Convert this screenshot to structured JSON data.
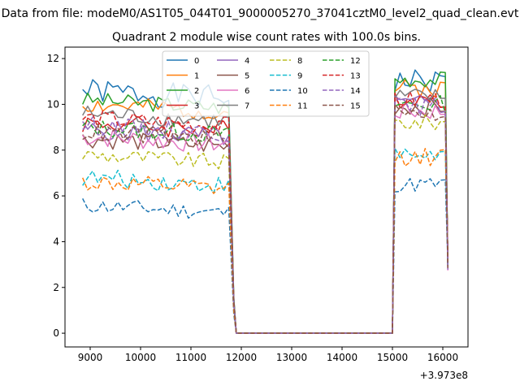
{
  "chart_data": {
    "type": "line",
    "suptitle": "Data from file: modeM0/AS1T05_044T01_9000005270_37041cztM0_level2_quad_clean.evt",
    "title": "Quadrant 2 module wise count rates with 100.0s bins.",
    "xlabel": "",
    "ylabel": "",
    "x_offset_label": "+3.973e8",
    "x_ticks": [
      9000,
      10000,
      11000,
      12000,
      13000,
      14000,
      15000,
      16000
    ],
    "x_tick_labels": [
      "9000",
      "10000",
      "11000",
      "12000",
      "13000",
      "14000",
      "15000",
      "16000"
    ],
    "y_ticks": [
      0,
      2,
      4,
      6,
      8,
      10,
      12
    ],
    "y_tick_labels": [
      "0",
      "2",
      "4",
      "6",
      "8",
      "10",
      "12"
    ],
    "xlim": [
      8500,
      16500
    ],
    "ylim": [
      -0.6,
      12.5
    ],
    "grid": false,
    "legend_position": "upper-center",
    "legend_columns": 4,
    "segments": [
      {
        "x_start": 8850,
        "x_end": 11800
      },
      {
        "x_start": 15050,
        "x_end": 16050
      }
    ],
    "gap_x": [
      11900,
      12000,
      13000,
      14000,
      15000
    ],
    "transition_points": [
      {
        "x": 11850,
        "frac": 0.15
      }
    ],
    "series": [
      {
        "name": "0",
        "color": "#1f77b4",
        "dash": "solid",
        "level1": 10.6,
        "level2": 11.0,
        "noise": 0.55,
        "seed": 1
      },
      {
        "name": "1",
        "color": "#ff7f0e",
        "dash": "solid",
        "level1": 10.0,
        "level2": 10.7,
        "noise": 0.4,
        "seed": 2
      },
      {
        "name": "2",
        "color": "#2ca02c",
        "dash": "solid",
        "level1": 10.2,
        "level2": 11.1,
        "noise": 0.35,
        "seed": 3
      },
      {
        "name": "3",
        "color": "#d62728",
        "dash": "solid",
        "level1": 9.2,
        "level2": 10.3,
        "noise": 0.45,
        "seed": 4
      },
      {
        "name": "4",
        "color": "#9467bd",
        "dash": "solid",
        "level1": 8.9,
        "level2": 10.0,
        "noise": 0.45,
        "seed": 5
      },
      {
        "name": "5",
        "color": "#8c564b",
        "dash": "solid",
        "level1": 8.5,
        "level2": 9.9,
        "noise": 0.4,
        "seed": 6
      },
      {
        "name": "6",
        "color": "#e377c2",
        "dash": "solid",
        "level1": 8.6,
        "level2": 9.7,
        "noise": 0.45,
        "seed": 7
      },
      {
        "name": "7",
        "color": "#7f7f7f",
        "dash": "solid",
        "level1": 9.6,
        "level2": 10.3,
        "noise": 0.4,
        "seed": 8
      },
      {
        "name": "8",
        "color": "#bcbd22",
        "dash": "dashed",
        "level1": 7.8,
        "level2": 9.2,
        "noise": 0.35,
        "seed": 9
      },
      {
        "name": "9",
        "color": "#17becf",
        "dash": "dashed",
        "level1": 6.8,
        "level2": 7.8,
        "noise": 0.4,
        "seed": 10
      },
      {
        "name": "10",
        "color": "#1f77b4",
        "dash": "dashed",
        "level1": 5.6,
        "level2": 6.5,
        "noise": 0.35,
        "seed": 11
      },
      {
        "name": "11",
        "color": "#ff7f0e",
        "dash": "dashed",
        "level1": 6.6,
        "level2": 7.7,
        "noise": 0.4,
        "seed": 12
      },
      {
        "name": "12",
        "color": "#2ca02c",
        "dash": "dashed",
        "level1": 9.0,
        "level2": 10.0,
        "noise": 0.4,
        "seed": 13
      },
      {
        "name": "13",
        "color": "#d62728",
        "dash": "dashed",
        "level1": 9.4,
        "level2": 10.2,
        "noise": 0.4,
        "seed": 14
      },
      {
        "name": "14",
        "color": "#9467bd",
        "dash": "dashed",
        "level1": 9.1,
        "level2": 9.9,
        "noise": 0.4,
        "seed": 15
      },
      {
        "name": "15",
        "color": "#8c564b",
        "dash": "dashed",
        "level1": 8.8,
        "level2": 9.6,
        "noise": 0.4,
        "seed": 16
      }
    ]
  }
}
